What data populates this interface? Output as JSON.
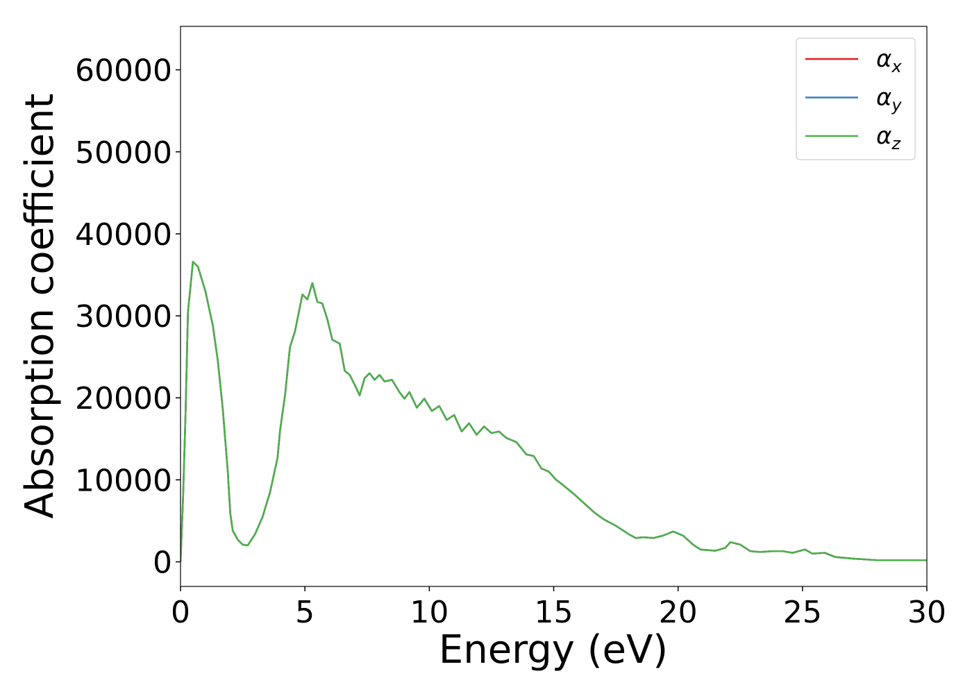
{
  "chart_data": {
    "type": "line",
    "xlabel": "Energy (eV)",
    "ylabel": "Absorption coefficient",
    "x": [
      0,
      0.1,
      0.2,
      0.3,
      0.5,
      0.7,
      1.0,
      1.3,
      1.5,
      1.7,
      1.9,
      2.0,
      2.1,
      2.3,
      2.5,
      2.7,
      3.0,
      3.3,
      3.6,
      3.9,
      4.0,
      4.2,
      4.4,
      4.6,
      4.9,
      5.1,
      5.3,
      5.5,
      5.7,
      5.9,
      6.1,
      6.4,
      6.6,
      6.8,
      7.0,
      7.2,
      7.4,
      7.6,
      7.8,
      8.0,
      8.2,
      8.5,
      8.8,
      9.0,
      9.2,
      9.5,
      9.8,
      10.1,
      10.4,
      10.7,
      11.0,
      11.3,
      11.6,
      11.9,
      12.2,
      12.5,
      12.8,
      13.1,
      13.5,
      13.9,
      14.2,
      14.5,
      14.8,
      15.1,
      15.4,
      15.8,
      16.2,
      16.6,
      17.0,
      17.5,
      18.0,
      18.3,
      18.6,
      19.0,
      19.4,
      19.8,
      20.2,
      20.6,
      20.9,
      21.5,
      21.9,
      22.1,
      22.5,
      22.9,
      23.3,
      23.8,
      24.2,
      24.6,
      25.1,
      25.4,
      25.9,
      26.3,
      27,
      28,
      30
    ],
    "series": [
      {
        "name": "αx",
        "color": "#e41a1c",
        "values": [
          0,
          7600,
          17800,
          30500,
          36600,
          36000,
          33000,
          28800,
          24500,
          18600,
          11000,
          5900,
          3800,
          2700,
          2100,
          2000,
          3400,
          5500,
          8500,
          12700,
          16000,
          20300,
          26200,
          28100,
          32600,
          32000,
          34000,
          31700,
          31500,
          29600,
          27100,
          26600,
          23300,
          22800,
          21600,
          20300,
          22400,
          23000,
          22200,
          22800,
          22000,
          22200,
          20700,
          19900,
          20700,
          18800,
          19900,
          18400,
          19000,
          17300,
          17900,
          15900,
          16900,
          15500,
          16500,
          15700,
          15900,
          15100,
          14600,
          13100,
          12900,
          11400,
          11000,
          10000,
          9300,
          8300,
          7200,
          6100,
          5200,
          4400,
          3400,
          2900,
          3000,
          2900,
          3200,
          3700,
          3200,
          2100,
          1500,
          1350,
          1700,
          2400,
          2100,
          1300,
          1200,
          1300,
          1300,
          1100,
          1500,
          1000,
          1100,
          600,
          400,
          200,
          200
        ]
      },
      {
        "name": "αy",
        "color": "#377eb8",
        "values": [
          0,
          7600,
          17800,
          30500,
          36600,
          36000,
          33000,
          28800,
          24500,
          18600,
          11000,
          5900,
          3800,
          2700,
          2100,
          2000,
          3400,
          5500,
          8500,
          12700,
          16000,
          20300,
          26200,
          28100,
          32600,
          32000,
          34000,
          31700,
          31500,
          29600,
          27100,
          26600,
          23300,
          22800,
          21600,
          20300,
          22400,
          23000,
          22200,
          22800,
          22000,
          22200,
          20700,
          19900,
          20700,
          18800,
          19900,
          18400,
          19000,
          17300,
          17900,
          15900,
          16900,
          15500,
          16500,
          15700,
          15900,
          15100,
          14600,
          13100,
          12900,
          11400,
          11000,
          10000,
          9300,
          8300,
          7200,
          6100,
          5200,
          4400,
          3400,
          2900,
          3000,
          2900,
          3200,
          3700,
          3200,
          2100,
          1500,
          1350,
          1700,
          2400,
          2100,
          1300,
          1200,
          1300,
          1300,
          1100,
          1500,
          1000,
          1100,
          600,
          400,
          200,
          200
        ]
      },
      {
        "name": "αz",
        "color": "#4daf4a",
        "values": [
          0,
          7600,
          17800,
          30500,
          36600,
          36000,
          33000,
          28800,
          24500,
          18600,
          11000,
          5900,
          3800,
          2700,
          2100,
          2000,
          3400,
          5500,
          8500,
          12700,
          16000,
          20300,
          26200,
          28100,
          32600,
          32000,
          34000,
          31700,
          31500,
          29600,
          27100,
          26600,
          23300,
          22800,
          21600,
          20300,
          22400,
          23000,
          22200,
          22800,
          22000,
          22200,
          20700,
          19900,
          20700,
          18800,
          19900,
          18400,
          19000,
          17300,
          17900,
          15900,
          16900,
          15500,
          16500,
          15700,
          15900,
          15100,
          14600,
          13100,
          12900,
          11400,
          11000,
          10000,
          9300,
          8300,
          7200,
          6100,
          5200,
          4400,
          3400,
          2900,
          3000,
          2900,
          3200,
          3700,
          3200,
          2100,
          1500,
          1350,
          1700,
          2400,
          2100,
          1300,
          1200,
          1300,
          1300,
          1100,
          1500,
          1000,
          1100,
          600,
          400,
          200,
          200
        ]
      }
    ],
    "xlim": [
      0,
      30
    ],
    "xticks": [
      0,
      5,
      10,
      15,
      20,
      25,
      30
    ],
    "ylim": [
      -3000,
      65300
    ],
    "yticks": [
      0,
      10000,
      20000,
      30000,
      40000,
      50000,
      60000
    ],
    "legend": "upper right",
    "grid": false
  }
}
